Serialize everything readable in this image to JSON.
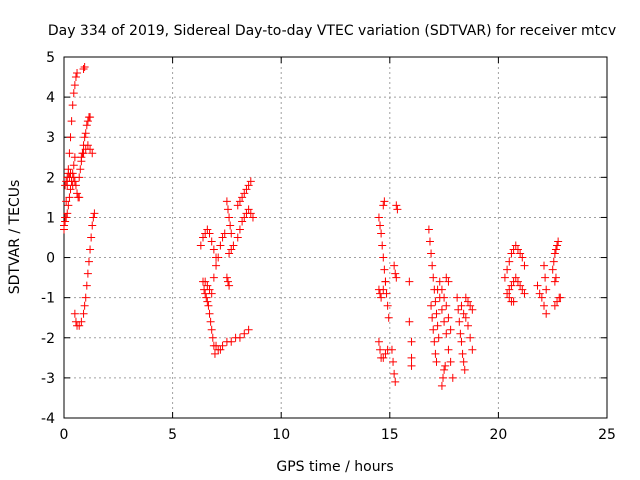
{
  "chart_data": {
    "type": "scatter",
    "title": "Day 334 of 2019, Sidereal Day-to-day VTEC variation (SDTVAR) for receiver mtcv",
    "xlabel": "GPS time / hours",
    "ylabel": "SDTVAR / TECUs",
    "xlim": [
      0,
      25
    ],
    "ylim": [
      -4,
      5
    ],
    "xticks": [
      "0",
      "5",
      "10",
      "15",
      "20",
      "25"
    ],
    "yticks": [
      "-4",
      "-3",
      "-2",
      "-1",
      "0",
      "1",
      "2",
      "3",
      "4",
      "5"
    ],
    "grid": true,
    "marker": "plus",
    "color": "#ff0000",
    "series": [
      {
        "segments": [
          [
            [
              0.0,
              0.7
            ],
            [
              0.05,
              1.0
            ],
            [
              0.1,
              1.4
            ],
            [
              0.15,
              1.8
            ],
            [
              0.2,
              2.2
            ],
            [
              0.25,
              2.6
            ],
            [
              0.3,
              3.0
            ],
            [
              0.35,
              3.4
            ],
            [
              0.4,
              3.8
            ],
            [
              0.45,
              4.1
            ],
            [
              0.5,
              4.3
            ],
            [
              0.55,
              4.5
            ],
            [
              0.6,
              4.6
            ]
          ],
          [
            [
              0.0,
              0.8
            ],
            [
              0.05,
              0.9
            ],
            [
              0.1,
              1.0
            ],
            [
              0.15,
              1.1
            ],
            [
              0.2,
              1.3
            ],
            [
              0.25,
              1.5
            ],
            [
              0.3,
              1.7
            ],
            [
              0.35,
              1.9
            ],
            [
              0.4,
              2.1
            ],
            [
              0.45,
              2.3
            ],
            [
              0.5,
              2.5
            ]
          ],
          [
            [
              0.05,
              1.8
            ],
            [
              0.1,
              1.9
            ],
            [
              0.15,
              2.0
            ],
            [
              0.2,
              2.1
            ],
            [
              0.25,
              2.0
            ],
            [
              0.3,
              2.1
            ],
            [
              0.35,
              1.9
            ],
            [
              0.4,
              1.8
            ],
            [
              0.45,
              2.0
            ],
            [
              0.5,
              1.9
            ],
            [
              0.55,
              1.8
            ],
            [
              0.6,
              1.6
            ],
            [
              0.65,
              1.5
            ],
            [
              0.7,
              1.5
            ]
          ],
          [
            [
              0.7,
              2.0
            ],
            [
              0.75,
              2.2
            ],
            [
              0.8,
              2.4
            ],
            [
              0.85,
              2.6
            ],
            [
              0.9,
              2.8
            ],
            [
              0.95,
              3.0
            ],
            [
              1.0,
              3.1
            ],
            [
              1.05,
              3.3
            ],
            [
              1.1,
              3.4
            ],
            [
              1.15,
              3.5
            ],
            [
              1.2,
              3.5
            ]
          ],
          [
            [
              0.8,
              2.5
            ],
            [
              0.9,
              2.6
            ],
            [
              1.0,
              2.7
            ],
            [
              1.1,
              2.8
            ],
            [
              1.2,
              2.7
            ],
            [
              1.3,
              2.6
            ]
          ],
          [
            [
              0.5,
              -1.4
            ],
            [
              0.55,
              -1.6
            ],
            [
              0.6,
              -1.7
            ],
            [
              0.7,
              -1.7
            ],
            [
              0.8,
              -1.6
            ],
            [
              0.9,
              -1.4
            ],
            [
              0.95,
              -1.2
            ],
            [
              1.0,
              -1.0
            ],
            [
              1.05,
              -0.7
            ],
            [
              1.1,
              -0.4
            ],
            [
              1.15,
              -0.1
            ],
            [
              1.2,
              0.2
            ],
            [
              1.25,
              0.5
            ],
            [
              1.3,
              0.8
            ],
            [
              1.35,
              1.0
            ],
            [
              1.4,
              1.1
            ]
          ],
          [
            [
              0.9,
              4.7
            ],
            [
              0.95,
              4.75
            ]
          ],
          [
            [
              6.3,
              0.3
            ],
            [
              6.4,
              0.5
            ],
            [
              6.5,
              0.6
            ],
            [
              6.6,
              0.7
            ],
            [
              6.7,
              0.6
            ],
            [
              6.8,
              0.4
            ],
            [
              6.9,
              0.2
            ],
            [
              7.0,
              0.0
            ]
          ],
          [
            [
              6.4,
              -0.6
            ],
            [
              6.45,
              -0.8
            ],
            [
              6.5,
              -0.9
            ],
            [
              6.55,
              -1.0
            ],
            [
              6.6,
              -1.1
            ],
            [
              6.65,
              -1.2
            ],
            [
              6.7,
              -1.4
            ],
            [
              6.75,
              -1.6
            ],
            [
              6.8,
              -1.8
            ],
            [
              6.85,
              -2.0
            ],
            [
              6.9,
              -2.2
            ],
            [
              6.95,
              -2.4
            ]
          ],
          [
            [
              6.5,
              -0.6
            ],
            [
              6.6,
              -0.7
            ],
            [
              6.7,
              -0.8
            ],
            [
              6.8,
              -0.9
            ],
            [
              6.9,
              -0.5
            ],
            [
              7.0,
              -0.2
            ],
            [
              7.1,
              0.0
            ],
            [
              7.2,
              0.3
            ],
            [
              7.3,
              0.5
            ],
            [
              7.4,
              0.6
            ]
          ],
          [
            [
              7.0,
              -2.2
            ],
            [
              7.1,
              -2.3
            ],
            [
              7.2,
              -2.3
            ],
            [
              7.3,
              -2.2
            ],
            [
              7.5,
              -2.1
            ],
            [
              7.7,
              -2.1
            ],
            [
              7.9,
              -2.0
            ],
            [
              8.1,
              -2.0
            ],
            [
              8.3,
              -1.9
            ],
            [
              8.5,
              -1.8
            ]
          ],
          [
            [
              7.5,
              -0.5
            ],
            [
              7.55,
              -0.6
            ],
            [
              7.6,
              -0.7
            ]
          ],
          [
            [
              7.6,
              0.1
            ],
            [
              7.7,
              0.2
            ],
            [
              7.8,
              0.3
            ]
          ],
          [
            [
              7.5,
              1.4
            ],
            [
              7.55,
              1.2
            ],
            [
              7.6,
              1.0
            ],
            [
              7.65,
              0.8
            ],
            [
              7.7,
              0.6
            ]
          ],
          [
            [
              8.0,
              0.5
            ],
            [
              8.1,
              0.7
            ],
            [
              8.2,
              0.9
            ],
            [
              8.3,
              1.0
            ],
            [
              8.4,
              1.1
            ],
            [
              8.5,
              1.2
            ],
            [
              8.6,
              1.1
            ],
            [
              8.7,
              1.0
            ]
          ],
          [
            [
              8.0,
              1.3
            ],
            [
              8.1,
              1.4
            ],
            [
              8.2,
              1.5
            ],
            [
              8.3,
              1.6
            ],
            [
              8.4,
              1.7
            ],
            [
              8.5,
              1.8
            ],
            [
              8.6,
              1.9
            ]
          ],
          [
            [
              14.5,
              1.0
            ],
            [
              14.55,
              0.8
            ],
            [
              14.6,
              0.6
            ],
            [
              14.65,
              0.3
            ],
            [
              14.7,
              0.0
            ],
            [
              14.75,
              -0.3
            ],
            [
              14.8,
              -0.6
            ],
            [
              14.85,
              -0.9
            ],
            [
              14.9,
              -1.2
            ],
            [
              14.95,
              -1.5
            ]
          ],
          [
            [
              14.5,
              -0.8
            ],
            [
              14.55,
              -0.9
            ],
            [
              14.6,
              -1.0
            ],
            [
              14.7,
              -0.8
            ],
            [
              14.8,
              -0.6
            ]
          ],
          [
            [
              14.5,
              -2.1
            ],
            [
              14.55,
              -2.3
            ],
            [
              14.6,
              -2.5
            ],
            [
              14.7,
              -2.5
            ],
            [
              14.8,
              -2.4
            ],
            [
              14.9,
              -2.3
            ]
          ],
          [
            [
              14.7,
              1.3
            ],
            [
              14.75,
              1.4
            ]
          ],
          [
            [
              15.1,
              -2.3
            ],
            [
              15.15,
              -2.6
            ],
            [
              15.2,
              -2.9
            ],
            [
              15.25,
              -3.1
            ]
          ],
          [
            [
              15.2,
              -0.2
            ],
            [
              15.25,
              -0.4
            ],
            [
              15.3,
              -0.5
            ]
          ],
          [
            [
              15.3,
              1.3
            ],
            [
              15.35,
              1.2
            ]
          ],
          [
            [
              15.9,
              -0.6
            ]
          ],
          [
            [
              15.9,
              -1.6
            ]
          ],
          [
            [
              16.0,
              -2.1
            ],
            [
              16.0,
              -2.5
            ],
            [
              16.0,
              -2.7
            ]
          ],
          [
            [
              16.8,
              0.7
            ],
            [
              16.85,
              0.4
            ],
            [
              16.9,
              0.1
            ],
            [
              16.95,
              -0.2
            ],
            [
              17.0,
              -0.5
            ],
            [
              17.05,
              -0.8
            ],
            [
              17.1,
              -1.1
            ],
            [
              17.15,
              -1.4
            ],
            [
              17.2,
              -1.7
            ],
            [
              17.25,
              -2.0
            ]
          ],
          [
            [
              16.9,
              -1.2
            ],
            [
              16.95,
              -1.5
            ],
            [
              17.0,
              -1.8
            ],
            [
              17.05,
              -2.1
            ],
            [
              17.1,
              -2.4
            ],
            [
              17.15,
              -2.6
            ]
          ],
          [
            [
              17.2,
              -0.8
            ],
            [
              17.3,
              -1.0
            ],
            [
              17.4,
              -1.3
            ],
            [
              17.5,
              -1.6
            ],
            [
              17.6,
              -1.9
            ],
            [
              17.7,
              -2.3
            ],
            [
              17.8,
              -2.6
            ],
            [
              17.9,
              -3.0
            ]
          ],
          [
            [
              17.3,
              -0.6
            ],
            [
              17.4,
              -0.8
            ],
            [
              17.5,
              -1.0
            ],
            [
              17.6,
              -1.2
            ],
            [
              17.7,
              -1.5
            ],
            [
              17.8,
              -1.8
            ]
          ],
          [
            [
              17.4,
              -3.2
            ],
            [
              17.45,
              -3.0
            ],
            [
              17.5,
              -2.8
            ],
            [
              17.55,
              -2.7
            ]
          ],
          [
            [
              17.6,
              -0.5
            ],
            [
              17.7,
              -0.6
            ]
          ],
          [
            [
              18.1,
              -1.0
            ],
            [
              18.15,
              -1.3
            ],
            [
              18.2,
              -1.6
            ],
            [
              18.25,
              -1.9
            ],
            [
              18.3,
              -2.1
            ],
            [
              18.35,
              -2.4
            ],
            [
              18.4,
              -2.6
            ],
            [
              18.45,
              -2.8
            ]
          ],
          [
            [
              18.3,
              -1.2
            ],
            [
              18.4,
              -1.4
            ],
            [
              18.5,
              -1.5
            ],
            [
              18.6,
              -1.7
            ],
            [
              18.7,
              -2.0
            ],
            [
              18.8,
              -2.3
            ]
          ],
          [
            [
              18.5,
              -1.0
            ],
            [
              18.6,
              -1.1
            ],
            [
              18.7,
              -1.2
            ],
            [
              18.8,
              -1.3
            ]
          ],
          [
            [
              20.3,
              -0.5
            ],
            [
              20.4,
              -0.3
            ],
            [
              20.5,
              -0.1
            ],
            [
              20.6,
              0.1
            ],
            [
              20.7,
              0.2
            ],
            [
              20.8,
              0.3
            ],
            [
              20.9,
              0.2
            ],
            [
              21.0,
              0.1
            ],
            [
              21.1,
              0.0
            ],
            [
              21.2,
              -0.2
            ]
          ],
          [
            [
              20.4,
              -0.9
            ],
            [
              20.5,
              -0.8
            ],
            [
              20.6,
              -0.7
            ],
            [
              20.7,
              -0.6
            ],
            [
              20.8,
              -0.5
            ],
            [
              20.9,
              -0.6
            ],
            [
              21.0,
              -0.7
            ],
            [
              21.1,
              -0.8
            ],
            [
              21.2,
              -0.9
            ]
          ],
          [
            [
              20.5,
              -1.0
            ],
            [
              20.6,
              -1.1
            ],
            [
              20.7,
              -1.1
            ]
          ],
          [
            [
              21.8,
              -0.7
            ],
            [
              21.9,
              -0.9
            ],
            [
              22.0,
              -1.0
            ],
            [
              22.1,
              -1.2
            ],
            [
              22.2,
              -1.4
            ]
          ],
          [
            [
              22.1,
              -0.2
            ],
            [
              22.15,
              -0.5
            ],
            [
              22.2,
              -0.8
            ]
          ],
          [
            [
              22.5,
              -0.3
            ],
            [
              22.55,
              -0.1
            ],
            [
              22.6,
              0.1
            ],
            [
              22.65,
              0.2
            ],
            [
              22.7,
              0.3
            ],
            [
              22.75,
              0.4
            ]
          ],
          [
            [
              22.6,
              -0.6
            ],
            [
              22.65,
              -0.5
            ]
          ],
          [
            [
              22.6,
              -1.2
            ],
            [
              22.7,
              -1.1
            ],
            [
              22.8,
              -1.0
            ],
            [
              22.85,
              -1.0
            ]
          ]
        ]
      }
    ]
  }
}
